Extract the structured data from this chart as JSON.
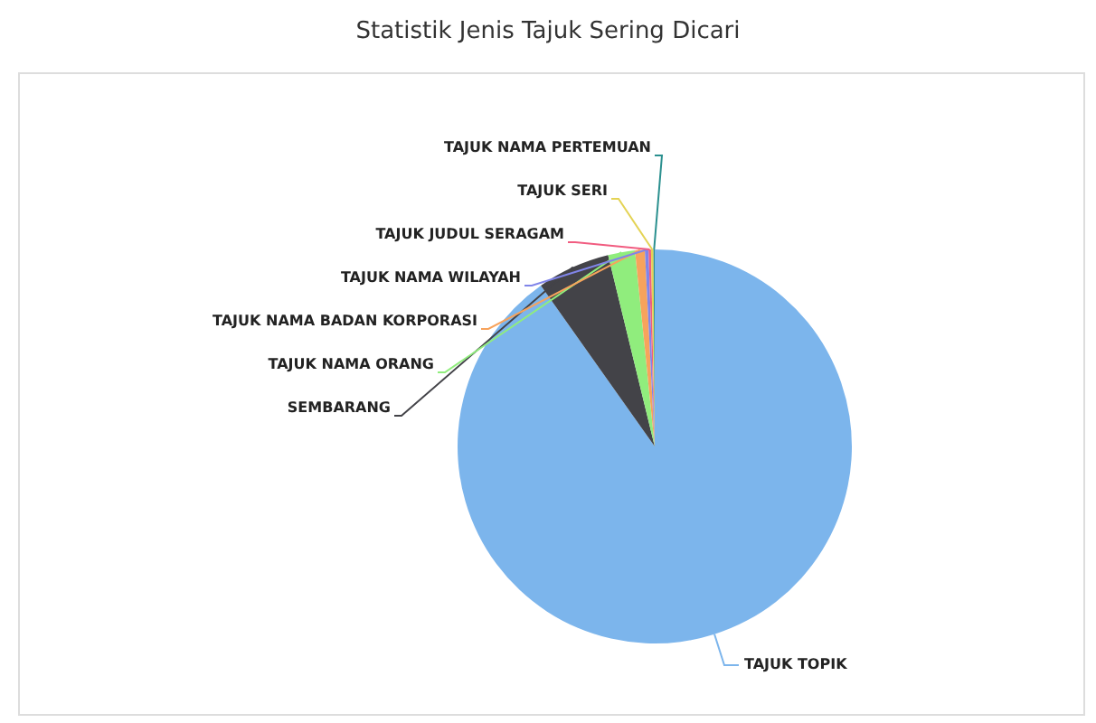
{
  "chart_data": {
    "type": "pie",
    "title": "Statistik Jenis Tajuk Sering Dicari",
    "categories": [
      "TAJUK TOPIK",
      "SEMBARANG",
      "TAJUK NAMA ORANG",
      "TAJUK NAMA BADAN KORPORASI",
      "TAJUK NAMA WILAYAH",
      "TAJUK JUDUL SERAGAM",
      "TAJUK SERI",
      "TAJUK NAMA PERTEMUAN"
    ],
    "values": [
      90.2,
      6,
      2.2,
      0.8,
      0.3,
      0.2,
      0.2,
      0.1
    ],
    "colors": [
      "#7cb5ec",
      "#434348",
      "#90ed7d",
      "#f7a35c",
      "#8085e9",
      "#f15c80",
      "#e4d354",
      "#2b908f"
    ],
    "legend": false
  }
}
